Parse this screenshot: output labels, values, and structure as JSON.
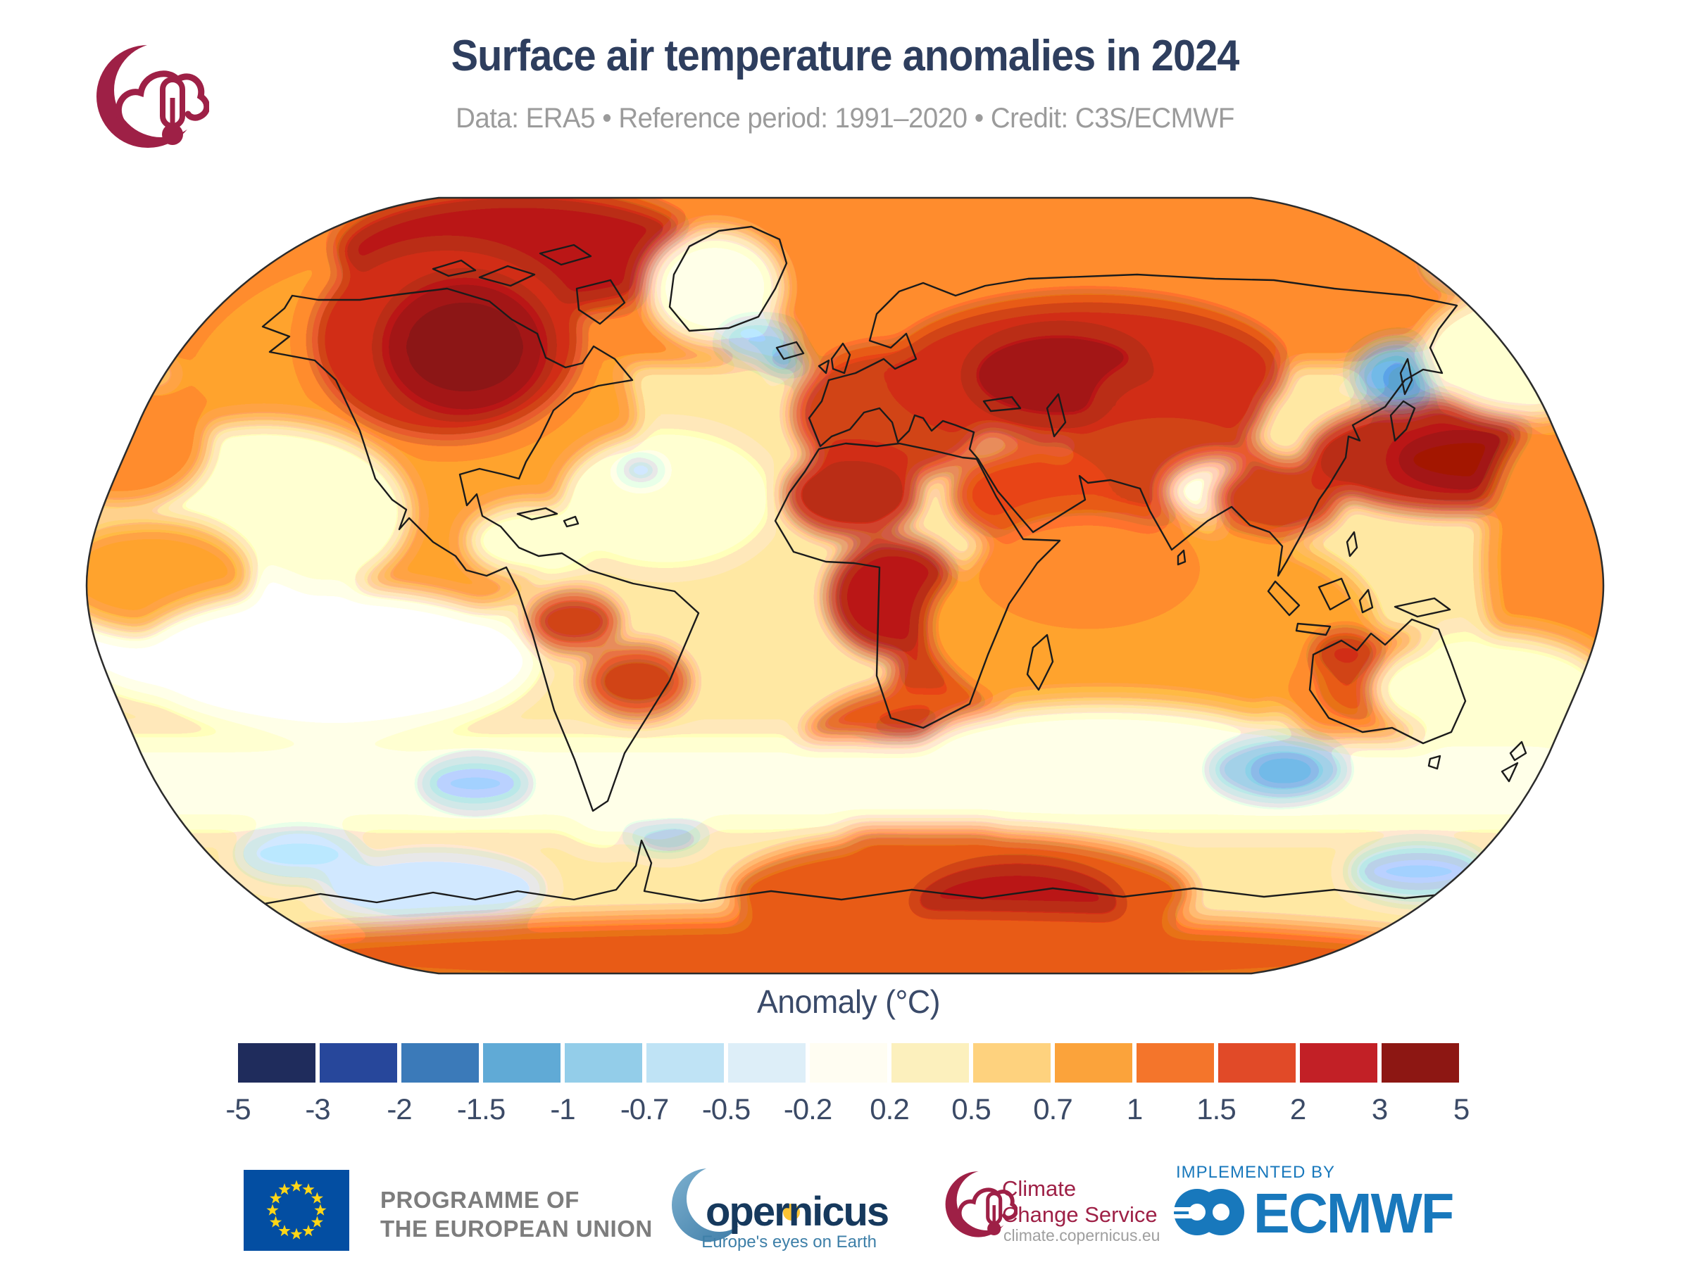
{
  "header": {
    "title": "Surface air temperature anomalies in 2024",
    "subtitle": "Data: ERA5 • Reference period: 1991–2020 • Credit: C3S/ECMWF"
  },
  "colorbar": {
    "label": "Anomaly (°C)",
    "tick_labels": [
      "-5",
      "-3",
      "-2",
      "-1.5",
      "-1",
      "-0.7",
      "-0.5",
      "-0.2",
      "0.2",
      "0.5",
      "0.7",
      "1",
      "1.5",
      "2",
      "3",
      "5"
    ],
    "colors": [
      "#1f2c5c",
      "#27479b",
      "#3b7ab9",
      "#60aad6",
      "#93cde9",
      "#bfe3f5",
      "#ddeef8",
      "#fffdf2",
      "#fcf0bd",
      "#fed27e",
      "#fba33b",
      "#f4752b",
      "#e14a28",
      "#c22026",
      "#8d1713"
    ]
  },
  "chart_data": {
    "type": "heatmap",
    "title": "Surface air temperature anomalies in 2024",
    "subtitle": "Data: ERA5 • Reference period: 1991–2020 • Credit: C3S/ECMWF",
    "projection": "Robinson world map",
    "variable": "Surface air temperature anomaly",
    "units": "°C",
    "data_source": "ERA5",
    "reference_period": "1991–2020",
    "credit": "C3S/ECMWF",
    "colorbar_label": "Anomaly (°C)",
    "scale_boundaries": [
      -5,
      -3,
      -2,
      -1.5,
      -1,
      -0.7,
      -0.5,
      -0.2,
      0.2,
      0.5,
      0.7,
      1,
      1.5,
      2,
      3,
      5
    ],
    "scale_colors": [
      "#1f2c5c",
      "#27479b",
      "#3b7ab9",
      "#60aad6",
      "#93cde9",
      "#bfe3f5",
      "#ddeef8",
      "#fffdf2",
      "#fcf0bd",
      "#fed27e",
      "#fba33b",
      "#f4752b",
      "#e14a28",
      "#c22026",
      "#8d1713"
    ],
    "notable_features": [
      {
        "region": "Northern Canada / Hudson Bay / Arctic archipelago",
        "anomaly_c": "+3 to +5"
      },
      {
        "region": "Eastern Europe and western Russia",
        "anomaly_c": "+2 to +3"
      },
      {
        "region": "Siberia and central Asia",
        "anomaly_c": "+1.5 to +3"
      },
      {
        "region": "Northwest Pacific east of Japan",
        "anomaly_c": "+2 to +3"
      },
      {
        "region": "Sahara and central Africa",
        "anomaly_c": "+2 to +3"
      },
      {
        "region": "South Atlantic near Antarctic coast",
        "anomaly_c": "+3 to +5"
      },
      {
        "region": "Antarctic coastal band (Atlantic/Indian sector)",
        "anomaly_c": "+1.5 to +3"
      },
      {
        "region": "North Atlantic southeast of Greenland / Iceland",
        "anomaly_c": "-0.5 to -2"
      },
      {
        "region": "Sea of Okhotsk / Kamchatka",
        "anomaly_c": "-0.5 to -2"
      },
      {
        "region": "Southern Ocean patches and seas off southern South America",
        "anomaly_c": "-0.2 to -1"
      },
      {
        "region": "Eastern and equatorial Pacific",
        "anomaly_c": "-0.2 to +0.2"
      },
      {
        "region": "Most other oceans and continents",
        "anomaly_c": "+0.2 to +1.5"
      }
    ]
  },
  "footer": {
    "eu": {
      "line1": "PROGRAMME OF",
      "line2": "THE EUROPEAN UNION"
    },
    "copernicus": {
      "wordmark": "opernicus",
      "tagline": "Europe's eyes on Earth"
    },
    "c3s": {
      "line1": "Climate",
      "line2": "Change Service",
      "url": "climate.copernicus.eu"
    },
    "ecmwf": {
      "implemented_by": "IMPLEMENTED BY",
      "wordmark": "ECMWF"
    }
  },
  "colors": {
    "title_navy": "#2e3e5e",
    "subtitle_gray": "#9b9b9b",
    "tick_navy": "#3b4a66",
    "c3s_maroon": "#9e2046",
    "eu_flag_blue": "#034ea2",
    "eu_star_yellow": "#ffd617",
    "eu_text_gray": "#7d7d7d",
    "copernicus_navy": "#16395d",
    "copernicus_tagline_blue": "#3d7fa8",
    "copernicus_dot_yellow": "#fcc433",
    "ecmwf_blue": "#1878bc",
    "url_gray": "#9f9f9f"
  }
}
